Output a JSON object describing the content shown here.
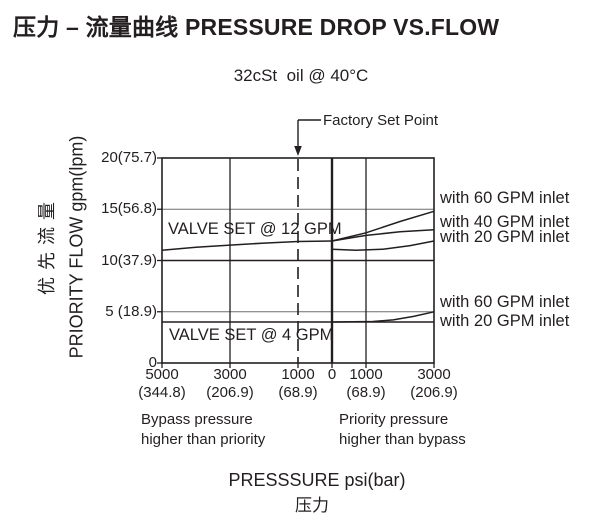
{
  "page": {
    "background": "#ffffff",
    "ink": "#231f20",
    "grid_light": "#6e6e6e"
  },
  "title": "压力 – 流量曲线 PRESSURE DROP VS.FLOW",
  "chart_data": {
    "type": "line",
    "title": "压力 – 流量曲线 PRESSURE DROP VS.FLOW",
    "subtitle": "32cSt  oil @ 40°C",
    "xlabel": "PRESSSURE psi(bar)",
    "xlabel_cn": "压力",
    "ylabel": "PRIORITY FLOW gpm(lpm)",
    "ylabel_cn": "优先流量",
    "grid": true,
    "legend_position": "right-of-curves",
    "x_axis": {
      "unit": "psi(bar)",
      "range_psi": [
        -5000,
        3000
      ],
      "ticks": [
        {
          "psi": -5000,
          "label": "5000",
          "sub": "(344.8)"
        },
        {
          "psi": -3000,
          "label": "3000",
          "sub": "(206.9)"
        },
        {
          "psi": -1000,
          "label": "1000",
          "sub": "(68.9)"
        },
        {
          "psi": 0,
          "label": "0",
          "sub": ""
        },
        {
          "psi": 1000,
          "label": "1000",
          "sub": "(68.9)"
        },
        {
          "psi": 3000,
          "label": "3000",
          "sub": "(206.9)"
        }
      ],
      "solid_gridlines_psi": [
        -3000,
        1000
      ],
      "zero_axis_psi": 0,
      "left_region_label": [
        "Bypass pressure",
        "higher than priority"
      ],
      "right_region_label": [
        "Priority pressure",
        "higher than bypass"
      ]
    },
    "y_axis": {
      "unit": "gpm(lpm)",
      "range_gpm": [
        0,
        20
      ],
      "ticks": [
        {
          "gpm": 0,
          "label": "0"
        },
        {
          "gpm": 5,
          "label": "5 (18.9)"
        },
        {
          "gpm": 10,
          "label": "10(37.9)"
        },
        {
          "gpm": 15,
          "label": "15(56.8)"
        },
        {
          "gpm": 20,
          "label": "20(75.7)"
        }
      ],
      "light_gridlines_gpm": [
        5,
        15
      ],
      "dark_gridlines_gpm": [
        10
      ]
    },
    "annotations": {
      "factory_set_point": {
        "label": "Factory Set Point",
        "psi": -1000
      },
      "valve_set_12_label": "VALVE SET @ 12 GPM",
      "valve_set_4_label": "VALVE SET @ 4 GPM"
    },
    "series": [
      {
        "id": "valve12-main",
        "group": "VALVE SET @ 12 GPM",
        "label": "",
        "points_psi_gpm": [
          [
            -5000,
            11.0
          ],
          [
            -4000,
            11.3
          ],
          [
            -3000,
            11.5
          ],
          [
            -2000,
            11.7
          ],
          [
            -1000,
            11.85
          ],
          [
            0,
            11.9
          ]
        ]
      },
      {
        "id": "valve12-60",
        "group": "VALVE SET @ 12 GPM",
        "label": "with 60 GPM inlet",
        "points_psi_gpm": [
          [
            0,
            11.9
          ],
          [
            1000,
            12.7
          ],
          [
            2000,
            13.8
          ],
          [
            3000,
            14.8
          ]
        ]
      },
      {
        "id": "valve12-40",
        "group": "VALVE SET @ 12 GPM",
        "label": "with 40 GPM inlet",
        "points_psi_gpm": [
          [
            0,
            11.9
          ],
          [
            1000,
            12.45
          ],
          [
            2000,
            12.8
          ],
          [
            3000,
            13.0
          ]
        ]
      },
      {
        "id": "valve12-20",
        "group": "VALVE SET @ 12 GPM",
        "label": "with 20 GPM inlet",
        "points_psi_gpm": [
          [
            0,
            11.1
          ],
          [
            700,
            11.0
          ],
          [
            1500,
            11.1
          ],
          [
            2300,
            11.45
          ],
          [
            3000,
            11.9
          ]
        ]
      },
      {
        "id": "valve4-20",
        "group": "VALVE SET @ 4 GPM",
        "label": "with 20 GPM inlet",
        "points_psi_gpm": [
          [
            -5000,
            4.0
          ],
          [
            0,
            4.0
          ],
          [
            3000,
            4.0
          ]
        ]
      },
      {
        "id": "valve4-60",
        "group": "VALVE SET @ 4 GPM",
        "label": "with 60 GPM inlet",
        "points_psi_gpm": [
          [
            0,
            4.0
          ],
          [
            1200,
            4.05
          ],
          [
            1800,
            4.2
          ],
          [
            2400,
            4.55
          ],
          [
            3000,
            5.0
          ]
        ]
      }
    ]
  }
}
